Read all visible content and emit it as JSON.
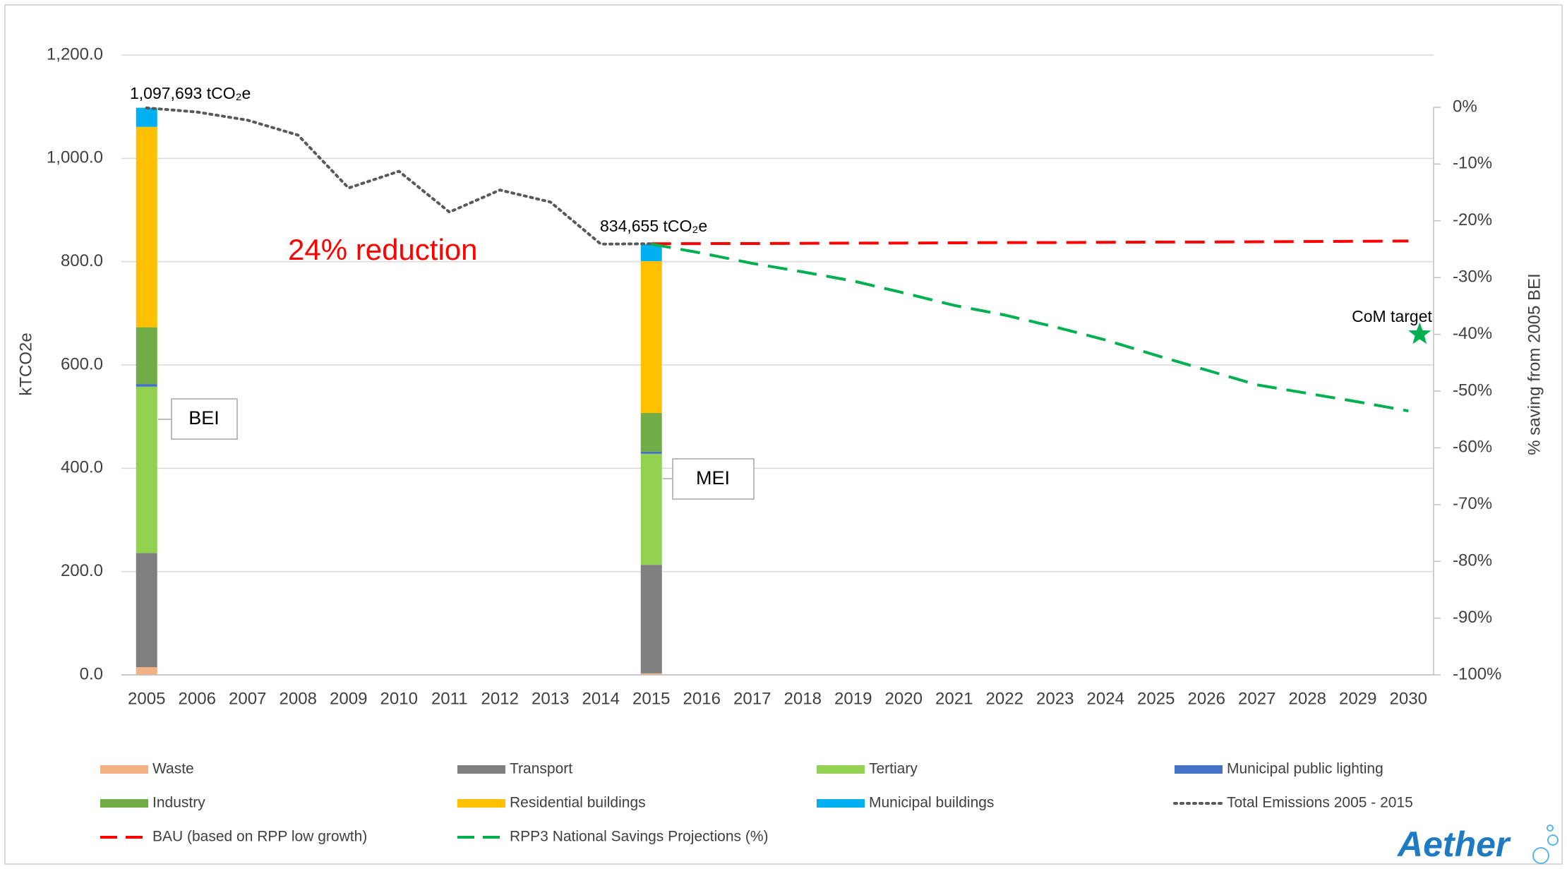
{
  "chart_data": {
    "type": "bar",
    "ylabel": "kTCO2e",
    "y2label": "% saving from 2005 BEI",
    "categories": [
      "2005",
      "2006",
      "2007",
      "2008",
      "2009",
      "2010",
      "2011",
      "2012",
      "2013",
      "2014",
      "2015",
      "2016",
      "2017",
      "2018",
      "2019",
      "2020",
      "2021",
      "2022",
      "2023",
      "2024",
      "2025",
      "2026",
      "2027",
      "2028",
      "2029",
      "2030"
    ],
    "ylim": [
      0,
      1200
    ],
    "yticks": [
      {
        "value": 0,
        "label": "0.0"
      },
      {
        "value": 200,
        "label": "200.0"
      },
      {
        "value": 400,
        "label": "400.0"
      },
      {
        "value": 600,
        "label": "600.0"
      },
      {
        "value": 800,
        "label": "800.0"
      },
      {
        "value": 1000,
        "label": "1,000.0"
      },
      {
        "value": 1200,
        "label": "1,200.0"
      }
    ],
    "y2lim": [
      -100,
      9.2
    ],
    "y2ticks": [
      {
        "value": 0,
        "label": "0%"
      },
      {
        "value": -10,
        "label": "-10%"
      },
      {
        "value": -20,
        "label": "-20%"
      },
      {
        "value": -30,
        "label": "-30%"
      },
      {
        "value": -40,
        "label": "-40%"
      },
      {
        "value": -50,
        "label": "-50%"
      },
      {
        "value": -60,
        "label": "-60%"
      },
      {
        "value": -70,
        "label": "-70%"
      },
      {
        "value": -80,
        "label": "-80%"
      },
      {
        "value": -90,
        "label": "-90%"
      },
      {
        "value": -100,
        "label": "-100%"
      }
    ],
    "grid": true,
    "series": [
      {
        "name": "Waste",
        "type": "bar",
        "color": "#f4b183",
        "values": [
          15,
          null,
          null,
          null,
          null,
          null,
          null,
          null,
          null,
          null,
          3,
          null,
          null,
          null,
          null,
          null,
          null,
          null,
          null,
          null,
          null,
          null,
          null,
          null,
          null,
          null
        ]
      },
      {
        "name": "Transport",
        "type": "bar",
        "color": "#7f7f7f",
        "values": [
          221,
          null,
          null,
          null,
          null,
          null,
          null,
          null,
          null,
          null,
          210,
          null,
          null,
          null,
          null,
          null,
          null,
          null,
          null,
          null,
          null,
          null,
          null,
          null,
          null,
          null
        ]
      },
      {
        "name": "Tertiary",
        "type": "bar",
        "color": "#92d050",
        "values": [
          322,
          null,
          null,
          null,
          null,
          null,
          null,
          null,
          null,
          null,
          215,
          null,
          null,
          null,
          null,
          null,
          null,
          null,
          null,
          null,
          null,
          null,
          null,
          null,
          null,
          null
        ]
      },
      {
        "name": "Municipal public lighting",
        "type": "bar",
        "color": "#4472c4",
        "values": [
          5,
          null,
          null,
          null,
          null,
          null,
          null,
          null,
          null,
          null,
          4,
          null,
          null,
          null,
          null,
          null,
          null,
          null,
          null,
          null,
          null,
          null,
          null,
          null,
          null,
          null
        ]
      },
      {
        "name": "Industry",
        "type": "bar",
        "color": "#70ad47",
        "values": [
          110,
          null,
          null,
          null,
          null,
          null,
          null,
          null,
          null,
          null,
          75,
          null,
          null,
          null,
          null,
          null,
          null,
          null,
          null,
          null,
          null,
          null,
          null,
          null,
          null,
          null
        ]
      },
      {
        "name": "Residential buildings",
        "type": "bar",
        "color": "#ffc000",
        "values": [
          388,
          null,
          null,
          null,
          null,
          null,
          null,
          null,
          null,
          null,
          294,
          null,
          null,
          null,
          null,
          null,
          null,
          null,
          null,
          null,
          null,
          null,
          null,
          null,
          null,
          null
        ]
      },
      {
        "name": "Municipal buildings",
        "type": "bar",
        "color": "#00b0f0",
        "values": [
          37,
          null,
          null,
          null,
          null,
          null,
          null,
          null,
          null,
          null,
          33,
          null,
          null,
          null,
          null,
          null,
          null,
          null,
          null,
          null,
          null,
          null,
          null,
          null,
          null,
          null
        ]
      },
      {
        "name": "Total Emissions 2005 - 2015",
        "type": "line",
        "style": "dotted",
        "color": "#595959",
        "values": [
          1097.7,
          1089.7,
          1074,
          1045,
          942.6,
          975,
          896,
          938.7,
          915.5,
          834,
          834.7,
          null,
          null,
          null,
          null,
          null,
          null,
          null,
          null,
          null,
          null,
          null,
          null,
          null,
          null,
          null
        ]
      },
      {
        "name": "BAU (based on RPP low growth)",
        "type": "line",
        "style": "dashed",
        "color": "#ff0000",
        "values": [
          null,
          null,
          null,
          null,
          null,
          null,
          null,
          null,
          null,
          null,
          834.7,
          835,
          835,
          835.5,
          836,
          836,
          836.5,
          837,
          837,
          837.5,
          838,
          838,
          838.5,
          839,
          839.5,
          840
        ]
      },
      {
        "name": "RPP3 National Savings Projections (%)",
        "type": "line",
        "style": "dashed",
        "color": "#00b050",
        "axis": "y2",
        "values": [
          null,
          null,
          null,
          null,
          null,
          null,
          null,
          null,
          null,
          null,
          -24.1,
          -25.7,
          -27.5,
          -29,
          -30.6,
          -32.7,
          -34.9,
          -36.6,
          -38.7,
          -41,
          -43.7,
          -46.3,
          -48.9,
          -50.4,
          -51.9,
          -53.5
        ]
      }
    ],
    "annotations": [
      "1,097,693 tCO₂e",
      "834,655 tCO₂e",
      "24% reduction",
      "BEI",
      "MEI",
      "CoM target"
    ],
    "target": {
      "label": "CoM target",
      "category": "2030",
      "value": -40,
      "color": "#00b050",
      "axis": "y2"
    },
    "logo": "Aether"
  }
}
